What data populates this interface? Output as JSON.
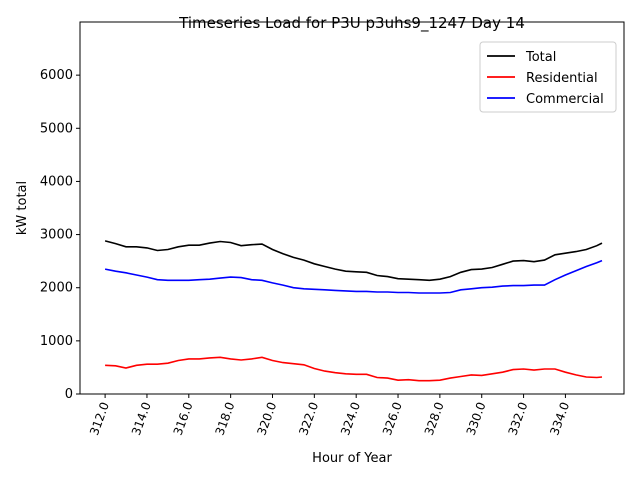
{
  "chart_data": {
    "type": "line",
    "title": "Timeseries Load for P3U p3uhs9_1247  Day 14",
    "xlabel": "Hour of Year",
    "ylabel": "kW total",
    "xlim": [
      310.8,
      336.8
    ],
    "ylim": [
      0,
      7000
    ],
    "xticks": [
      312,
      314,
      316,
      318,
      320,
      322,
      324,
      326,
      328,
      330,
      332,
      334
    ],
    "xtick_labels": [
      "312.0",
      "314.0",
      "316.0",
      "318.0",
      "320.0",
      "322.0",
      "324.0",
      "326.0",
      "328.0",
      "330.0",
      "332.0",
      "334.0"
    ],
    "yticks": [
      0,
      1000,
      2000,
      3000,
      4000,
      5000,
      6000
    ],
    "ytick_labels": [
      "0",
      "1000",
      "2000",
      "3000",
      "4000",
      "5000",
      "6000"
    ],
    "grid": false,
    "legend_position": "top-right",
    "x": [
      312,
      312.5,
      313,
      313.5,
      314,
      314.5,
      315,
      315.5,
      316,
      316.5,
      317,
      317.5,
      318,
      318.5,
      319,
      319.5,
      320,
      320.5,
      321,
      321.5,
      322,
      322.5,
      323,
      323.5,
      324,
      324.5,
      325,
      325.5,
      326,
      326.5,
      327,
      327.5,
      328,
      328.5,
      329,
      329.5,
      330,
      330.5,
      331,
      331.5,
      332,
      332.5,
      333,
      333.5,
      334,
      334.5,
      335,
      335.5,
      335.75
    ],
    "series": [
      {
        "name": "Total",
        "color": "#000000",
        "values": [
          2880,
          2830,
          2770,
          2770,
          2750,
          2700,
          2720,
          2770,
          2800,
          2800,
          2840,
          2870,
          2850,
          2790,
          2810,
          2820,
          2720,
          2640,
          2570,
          2520,
          2450,
          2400,
          2350,
          2310,
          2300,
          2290,
          2230,
          2210,
          2170,
          2160,
          2150,
          2140,
          2160,
          2210,
          2290,
          2340,
          2350,
          2380,
          2440,
          2500,
          2510,
          2490,
          2520,
          2620,
          2650,
          2680,
          2720,
          2790,
          2840
        ]
      },
      {
        "name": "Residential",
        "color": "#ff0000",
        "values": [
          540,
          530,
          490,
          540,
          560,
          560,
          580,
          630,
          660,
          660,
          680,
          690,
          660,
          640,
          660,
          690,
          630,
          590,
          570,
          550,
          480,
          430,
          400,
          380,
          370,
          370,
          310,
          300,
          260,
          270,
          250,
          250,
          260,
          300,
          330,
          360,
          350,
          380,
          410,
          460,
          470,
          450,
          470,
          470,
          410,
          360,
          320,
          310,
          320
        ]
      },
      {
        "name": "Commercial",
        "color": "#0000ff",
        "values": [
          2350,
          2310,
          2280,
          2240,
          2200,
          2150,
          2140,
          2140,
          2140,
          2150,
          2160,
          2180,
          2200,
          2190,
          2150,
          2140,
          2090,
          2050,
          2000,
          1980,
          1970,
          1960,
          1950,
          1940,
          1930,
          1930,
          1920,
          1920,
          1910,
          1910,
          1900,
          1900,
          1900,
          1910,
          1960,
          1980,
          2000,
          2010,
          2030,
          2040,
          2040,
          2050,
          2050,
          2150,
          2240,
          2320,
          2400,
          2470,
          2510
        ]
      }
    ]
  }
}
